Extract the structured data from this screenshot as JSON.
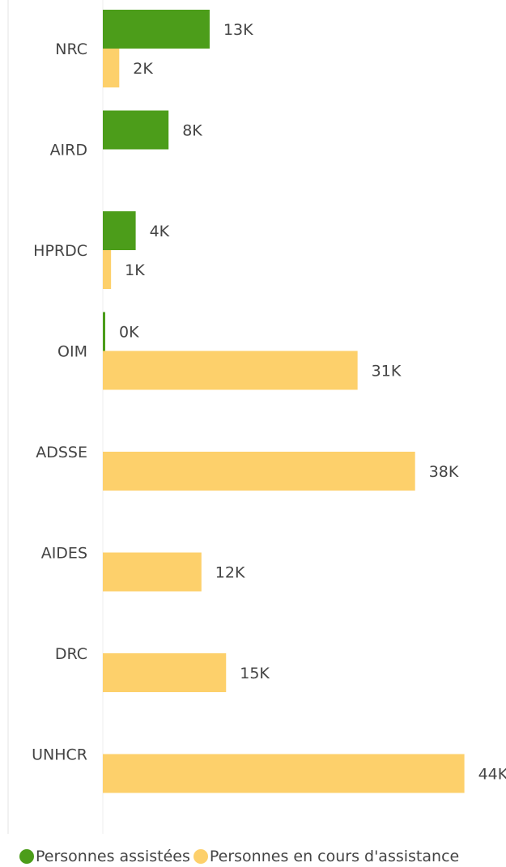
{
  "chart_data": {
    "type": "bar",
    "orientation": "horizontal",
    "categories": [
      "NRC",
      "AIRD",
      "HPRDC",
      "OIM",
      "ADSSE",
      "AIDES",
      "DRC",
      "UNHCR"
    ],
    "series": [
      {
        "name": "Personnes assistées",
        "color": "#4c9d1a",
        "values": [
          13,
          8,
          4,
          0.2,
          null,
          null,
          null,
          null
        ],
        "labels": [
          "13K",
          "8K",
          "4K",
          "0K",
          "",
          "",
          "",
          ""
        ]
      },
      {
        "name": "Personnes en cours d'assistance",
        "color": "#fdd06b",
        "values": [
          2,
          null,
          1,
          31,
          38,
          12,
          15,
          44
        ],
        "labels": [
          "2K",
          "",
          "1K",
          "31K",
          "38K",
          "12K",
          "15K",
          "44K"
        ]
      }
    ],
    "unit": "K",
    "xlim": [
      0,
      44
    ],
    "grid": false,
    "legend_position": "bottom-left"
  },
  "legend": {
    "items": [
      {
        "label": "Personnes assistées",
        "color": "#4c9d1a",
        "icon": "green-circle-icon"
      },
      {
        "label": "Personnes en cours d'assistance",
        "color": "#fdd06b",
        "icon": "yellow-circle-icon"
      }
    ]
  }
}
